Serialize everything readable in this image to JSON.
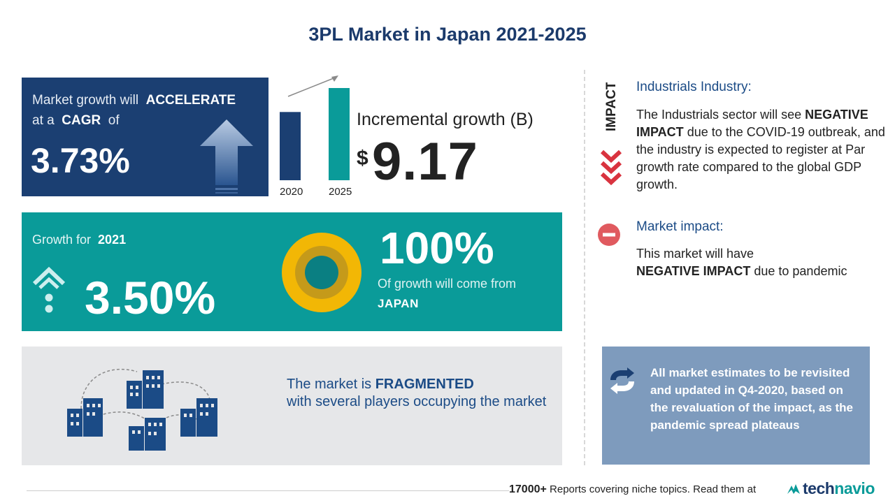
{
  "title": "3PL Market in Japan 2021-2025",
  "cagr_panel": {
    "prefix": "Market growth will",
    "emphasis": "ACCELERATE",
    "at": "at a",
    "cagr_label": "CAGR",
    "of": "of",
    "value": "3.73%"
  },
  "incremental": {
    "title": "Incremental growth (B)",
    "currency": "$",
    "value": "9.17",
    "bars": [
      {
        "label": "2020",
        "relative_height": 0.74,
        "color": "#1b3f72"
      },
      {
        "label": "2025",
        "relative_height": 1.0,
        "color": "#0a9b99"
      }
    ]
  },
  "growth_panel": {
    "label": "Growth for",
    "year": "2021",
    "value": "3.50%",
    "share_value": "100%",
    "share_text": "Of growth will come from",
    "region": "JAPAN"
  },
  "fragmented_panel": {
    "prefix": "The market is",
    "emphasis": "FRAGMENTED",
    "rest": "with several players occupying the market"
  },
  "industry": {
    "vertical_label": "IMPACT",
    "title": "Industrials Industry:",
    "body_1": "The Industrials sector will see",
    "body_emphasis": "NEGATIVE IMPACT",
    "body_2": "due to the COVID-19 outbreak, and the industry is expected to register at Par growth rate compared to the global GDP growth."
  },
  "market_impact": {
    "title": "Market impact:",
    "body_1": "This market will have",
    "body_emphasis": "NEGATIVE IMPACT",
    "body_2": "due to pandemic"
  },
  "note": {
    "text": "All market estimates to be revisited and updated in Q4-2020, based on the revaluation of the impact, as the pandemic spread plateaus"
  },
  "footer": {
    "count": "17000+",
    "text": "Reports covering niche topics. Read them at",
    "logo_part1": "tech",
    "logo_part2": "navio"
  },
  "colors": {
    "navy": "#1b3f72",
    "teal": "#0a9b99",
    "red": "#d9333f",
    "note_bg": "#7e9bbd",
    "donut_outer": "#f2b705",
    "donut_mid": "#c59a1a"
  }
}
